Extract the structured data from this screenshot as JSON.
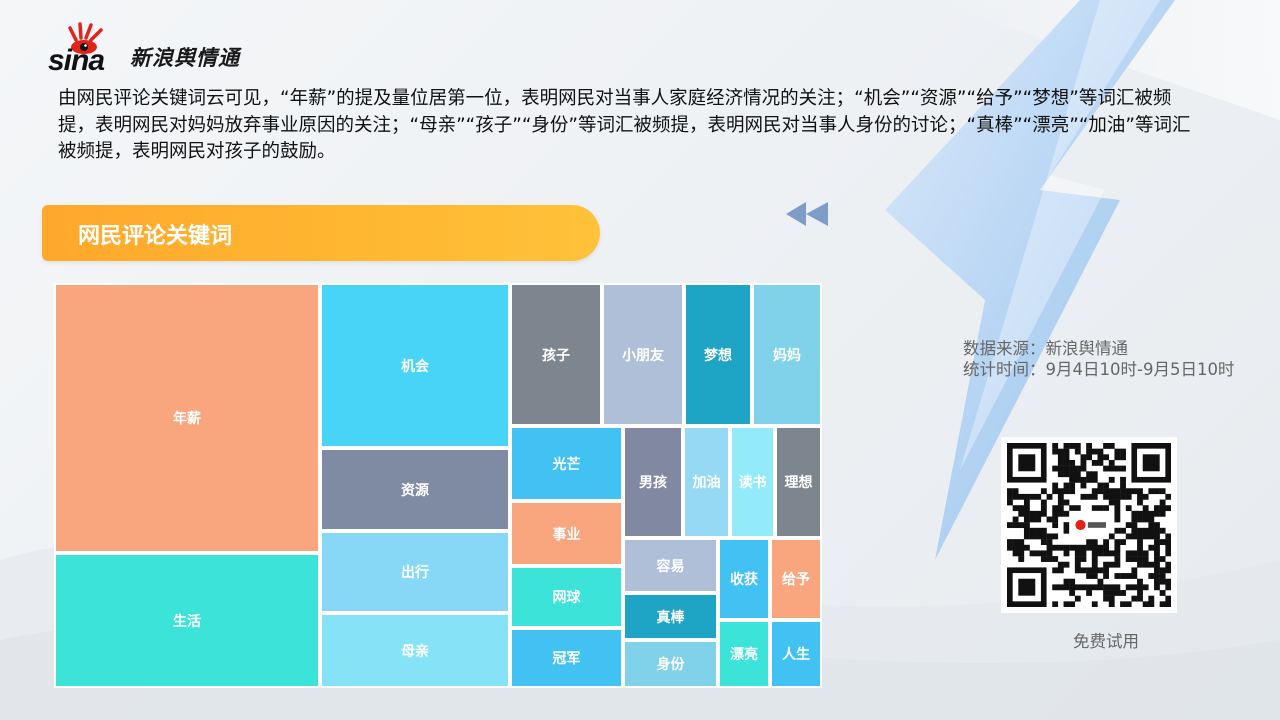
{
  "brand": {
    "logo_word": "sina",
    "name": "新浪舆情通"
  },
  "intro": {
    "text": "由网民评论关键词云可见，“年薪”的提及量位居第一位，表明网民对当事人家庭经济情况的关注；“机会”“资源”“给予”“梦想”等词汇被频提，表明网民对妈妈放弃事业原因的关注；“母亲”“孩子”“身份”等词汇被频提，表明网民对当事人身份的讨论；“真棒”“漂亮”“加油”等词汇被频提，表明网民对孩子的鼓励。"
  },
  "section": {
    "title": "网民评论关键词"
  },
  "source": {
    "line1": "数据来源：新浪舆情通",
    "line2": "统计时间：9月4日10时-9月5日10时"
  },
  "qr": {
    "label": "免费试用"
  },
  "colors": {
    "banner": "#ffb02e",
    "orange": "#f9a57e",
    "teal": "#3ce3d9",
    "cyan": "#48d4f6",
    "slate": "#7f8ba3",
    "light_blue": "#86d8f6",
    "pale_cyan": "#86e3f7",
    "gray": "#7d858f",
    "lavender": "#afbfd8",
    "deep_teal": "#1ea4c4",
    "sky": "#7fd2ea",
    "blue": "#42c2f2",
    "steel": "#8189a2",
    "aqua": "#96d9f5",
    "ice": "#93ebfa"
  },
  "chart_data": {
    "type": "treemap",
    "title": "",
    "items": [
      {
        "label": "年薪",
        "value": 55.5,
        "color": "#f9a57e"
      },
      {
        "label": "生活",
        "value": 35.0,
        "color": "#3ce3d9"
      },
      {
        "label": "机会",
        "value": 31.3,
        "color": "#48d4f6"
      },
      {
        "label": "资源",
        "value": 15.6,
        "color": "#7f8ba3"
      },
      {
        "label": "出行",
        "value": 15.6,
        "color": "#86d8f6"
      },
      {
        "label": "母亲",
        "value": 13.8,
        "color": "#86e3f7"
      },
      {
        "label": "孩子",
        "value": 13.0,
        "color": "#7d858f"
      },
      {
        "label": "小朋友",
        "value": 11.3,
        "color": "#afbfd8"
      },
      {
        "label": "梦想",
        "value": 9.9,
        "color": "#1ea4c4"
      },
      {
        "label": "妈妈",
        "value": 9.6,
        "color": "#7fd2ea"
      },
      {
        "label": "光芒",
        "value": 7.5,
        "color": "#42c2f2"
      },
      {
        "label": "事业",
        "value": 6.5,
        "color": "#f9a57e"
      },
      {
        "label": "网球",
        "value": 6.5,
        "color": "#3ce3d9"
      },
      {
        "label": "冠军",
        "value": 6.5,
        "color": "#42c2f2"
      },
      {
        "label": "男孩",
        "value": 6.7,
        "color": "#8189a2"
      },
      {
        "label": "加油",
        "value": 5.6,
        "color": "#96d9f5"
      },
      {
        "label": "读书",
        "value": 5.6,
        "color": "#93ebfa"
      },
      {
        "label": "理想",
        "value": 5.6,
        "color": "#7d858f"
      },
      {
        "label": "容易",
        "value": 4.8,
        "color": "#afbfd8"
      },
      {
        "label": "真棒",
        "value": 4.6,
        "color": "#1ea4c4"
      },
      {
        "label": "身份",
        "value": 4.4,
        "color": "#7fd2ea"
      },
      {
        "label": "收获",
        "value": 4.0,
        "color": "#42c2f2"
      },
      {
        "label": "给予",
        "value": 4.0,
        "color": "#f9a57e"
      },
      {
        "label": "漂亮",
        "value": 3.3,
        "color": "#3ce3d9"
      },
      {
        "label": "人生",
        "value": 3.0,
        "color": "#42c2f2"
      }
    ]
  }
}
